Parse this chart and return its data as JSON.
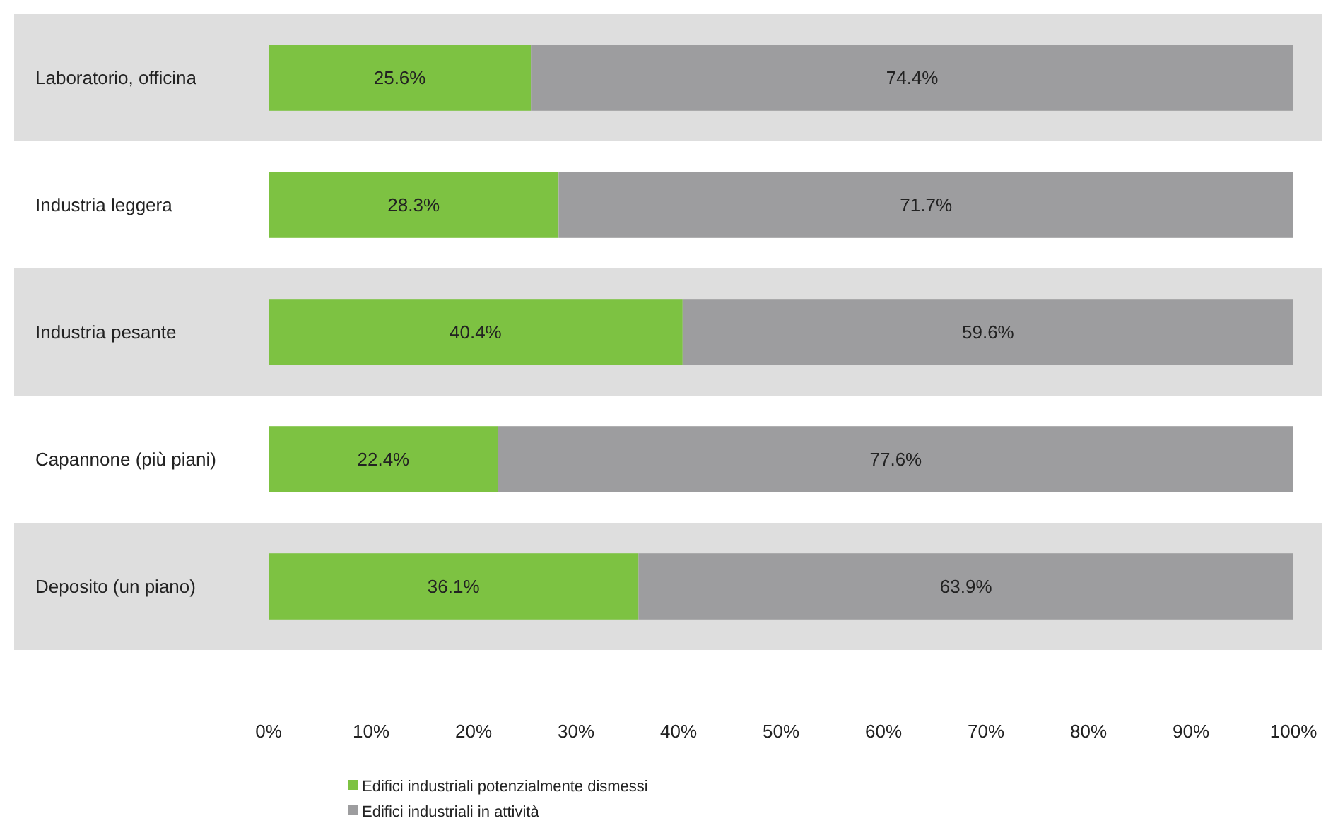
{
  "chart_data": {
    "type": "bar",
    "orientation": "horizontal",
    "stacked": true,
    "categories": [
      "Laboratorio, officina",
      "Industria leggera",
      "Industria pesante",
      "Capannone (più piani)",
      "Deposito (un piano)"
    ],
    "series": [
      {
        "name": "Edifici industriali potenzialmente dismessi",
        "color": "#7dc242",
        "values": [
          25.6,
          28.3,
          40.4,
          22.4,
          36.1
        ]
      },
      {
        "name": "Edifici industriali in attività",
        "color": "#9d9d9f",
        "values": [
          74.4,
          71.7,
          59.6,
          77.6,
          63.9
        ]
      }
    ],
    "value_labels": [
      [
        "25.6%",
        "28.3%",
        "40.4%",
        "22.4%",
        "36.1%"
      ],
      [
        "74.4%",
        "71.7%",
        "59.6%",
        "77.6%",
        "63.9%"
      ]
    ],
    "xlim": [
      0,
      100
    ],
    "xticks": [
      {
        "value": 0,
        "label": "0%"
      },
      {
        "value": 10,
        "label": "10%"
      },
      {
        "value": 20,
        "label": "20%"
      },
      {
        "value": 30,
        "label": "30%"
      },
      {
        "value": 40,
        "label": "40%"
      },
      {
        "value": 50,
        "label": "50%"
      },
      {
        "value": 60,
        "label": "60%"
      },
      {
        "value": 70,
        "label": "70%"
      },
      {
        "value": 80,
        "label": "80%"
      },
      {
        "value": 90,
        "label": "90%"
      },
      {
        "value": 100,
        "label": "100%"
      }
    ],
    "legend": "bottom left"
  }
}
